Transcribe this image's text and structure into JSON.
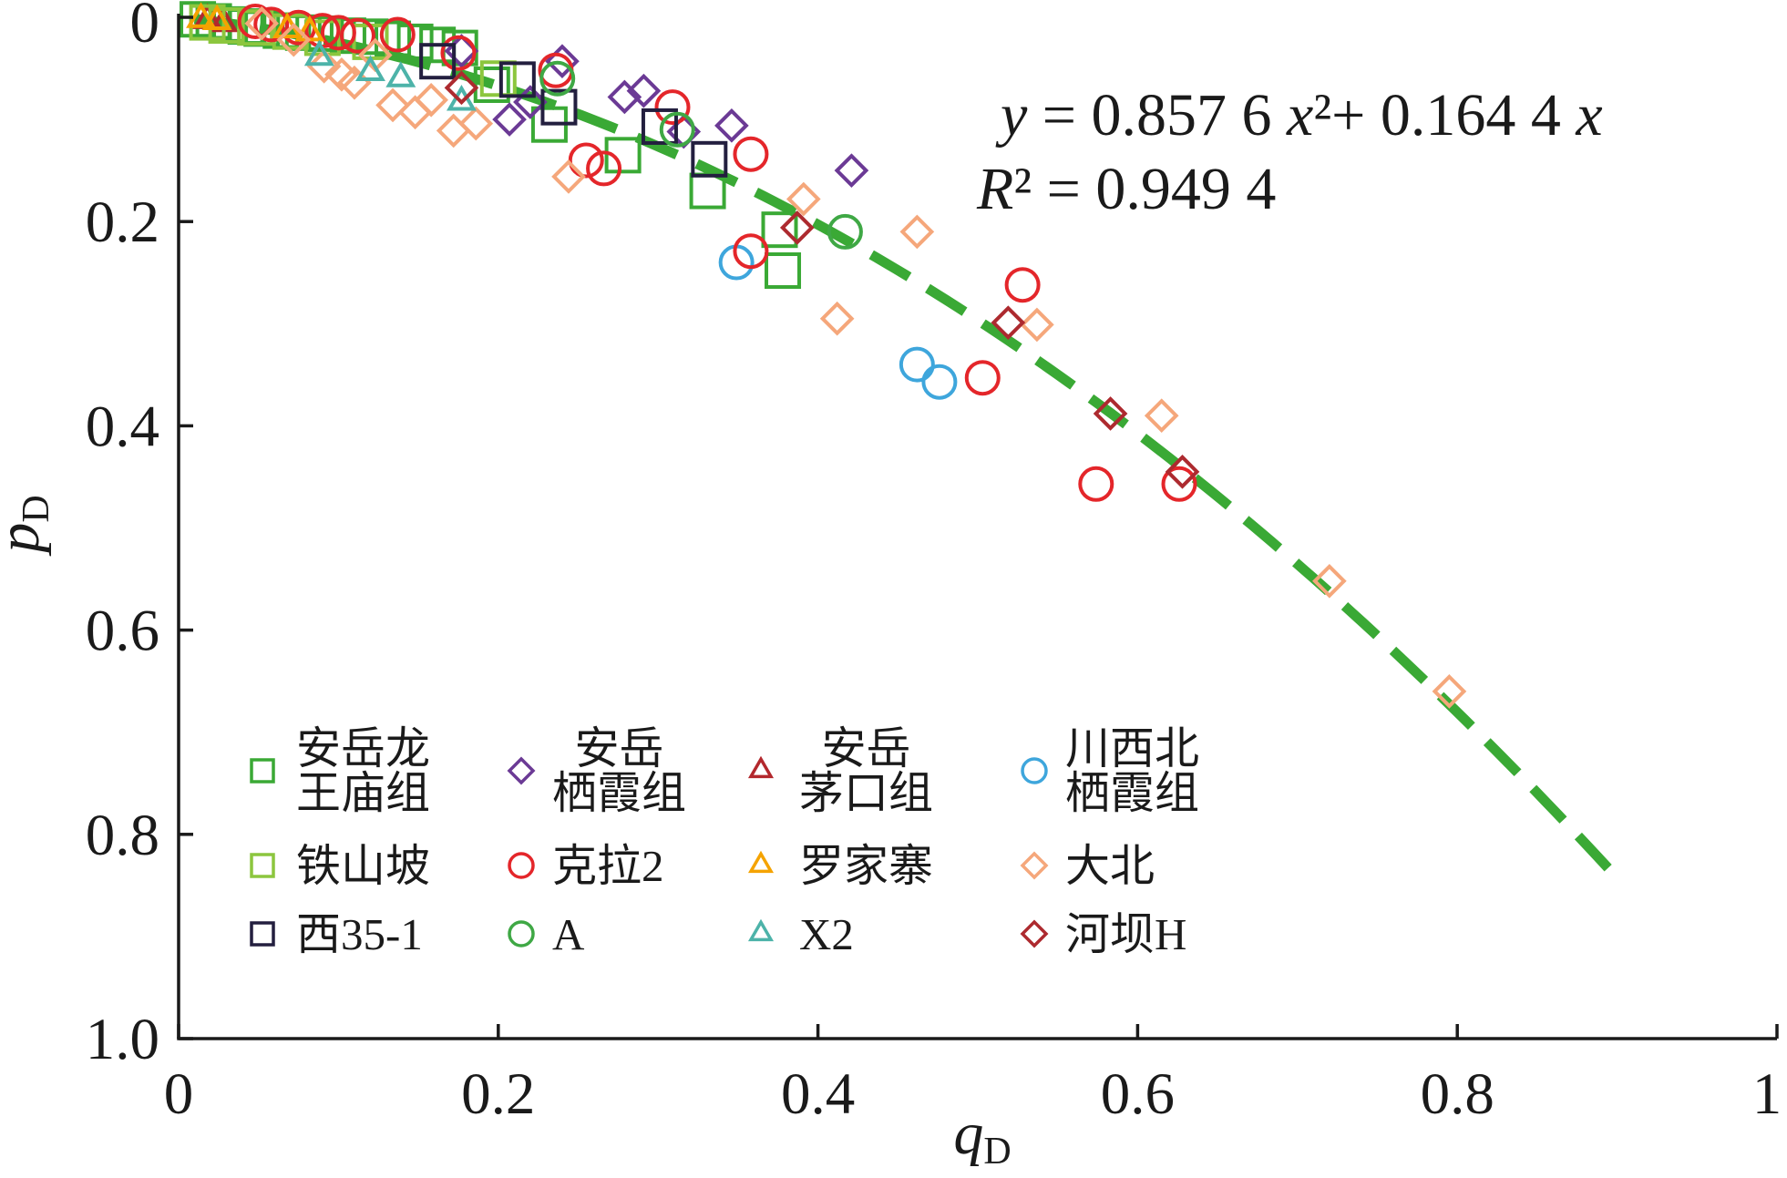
{
  "chart_data": {
    "type": "scatter",
    "xlabel": "q",
    "xlabel_sub": "D",
    "ylabel": "p",
    "ylabel_sub": "D",
    "xlim": [
      0,
      1
    ],
    "ylim": [
      0,
      1
    ],
    "y_inverted": true,
    "grid": false,
    "x_ticks": [
      {
        "value": 0,
        "label": "0"
      },
      {
        "value": 0.2,
        "label": "0.2"
      },
      {
        "value": 0.4,
        "label": "0.4"
      },
      {
        "value": 0.6,
        "label": "0.6"
      },
      {
        "value": 0.8,
        "label": "0.8"
      },
      {
        "value": 1,
        "label": "1"
      }
    ],
    "y_ticks": [
      {
        "value": 0,
        "label": "0"
      },
      {
        "value": 0.2,
        "label": "0.2"
      },
      {
        "value": 0.4,
        "label": "0.4"
      },
      {
        "value": 0.6,
        "label": "0.6"
      },
      {
        "value": 0.8,
        "label": "0.8"
      },
      {
        "value": 1,
        "label": "1.0"
      }
    ],
    "legend": {
      "placement": "bottom-left"
    },
    "fit": {
      "type": "quadratic",
      "a": 0.8576,
      "b": 0.1644,
      "x_range": [
        0.01,
        0.9
      ],
      "color": "#3aa935"
    },
    "annotations": {
      "equation": "y = 0.857 6 x²+ 0.164 4 x",
      "r_squared": "R² = 0.949 4"
    },
    "series": [
      {
        "name": "安岳龙\n王庙组",
        "marker": "square",
        "color": "#3aa935",
        "points": [
          [
            0.012,
            0.002
          ],
          [
            0.022,
            0.004
          ],
          [
            0.032,
            0.007
          ],
          [
            0.042,
            0.009
          ],
          [
            0.052,
            0.011
          ],
          [
            0.064,
            0.013
          ],
          [
            0.078,
            0.015
          ],
          [
            0.092,
            0.016
          ],
          [
            0.106,
            0.018
          ],
          [
            0.12,
            0.019
          ],
          [
            0.134,
            0.021
          ],
          [
            0.148,
            0.024
          ],
          [
            0.162,
            0.027
          ],
          [
            0.176,
            0.03
          ],
          [
            0.196,
            0.066
          ],
          [
            0.232,
            0.105
          ],
          [
            0.278,
            0.135
          ],
          [
            0.331,
            0.17
          ],
          [
            0.376,
            0.208
          ],
          [
            0.378,
            0.248
          ]
        ]
      },
      {
        "name": "安岳\n栖霞组",
        "marker": "diamond",
        "color": "#6b3a95",
        "points": [
          [
            0.177,
            0.033
          ],
          [
            0.207,
            0.1
          ],
          [
            0.22,
            0.083
          ],
          [
            0.24,
            0.043
          ],
          [
            0.279,
            0.078
          ],
          [
            0.291,
            0.072
          ],
          [
            0.316,
            0.112
          ],
          [
            0.346,
            0.106
          ],
          [
            0.421,
            0.15
          ]
        ]
      },
      {
        "name": "安岳\n茅口组",
        "marker": "triangle",
        "color": "#b3282d",
        "points": [
          [
            0.018,
            0.003
          ],
          [
            0.028,
            0.006
          ]
        ]
      },
      {
        "name": "川西北\n栖霞组",
        "marker": "circle",
        "color": "#3ea6dc",
        "points": [
          [
            0.349,
            0.24
          ],
          [
            0.462,
            0.34
          ],
          [
            0.476,
            0.357
          ]
        ]
      },
      {
        "name": "铁山坡",
        "marker": "square",
        "color": "#8cc63e",
        "points": [
          [
            0.018,
            0.005
          ],
          [
            0.03,
            0.008
          ],
          [
            0.048,
            0.01
          ],
          [
            0.07,
            0.014
          ],
          [
            0.09,
            0.02
          ],
          [
            0.12,
            0.024
          ],
          [
            0.2,
            0.06
          ]
        ]
      },
      {
        "name": "克拉2",
        "marker": "circle",
        "color": "#e4262a",
        "points": [
          [
            0.048,
            0.004
          ],
          [
            0.058,
            0.007
          ],
          [
            0.075,
            0.01
          ],
          [
            0.09,
            0.013
          ],
          [
            0.1,
            0.015
          ],
          [
            0.112,
            0.018
          ],
          [
            0.137,
            0.017
          ],
          [
            0.175,
            0.035
          ],
          [
            0.236,
            0.052
          ],
          [
            0.255,
            0.14
          ],
          [
            0.266,
            0.148
          ],
          [
            0.309,
            0.088
          ],
          [
            0.358,
            0.134
          ],
          [
            0.358,
            0.229
          ],
          [
            0.503,
            0.353
          ],
          [
            0.528,
            0.262
          ],
          [
            0.574,
            0.457
          ],
          [
            0.626,
            0.457
          ]
        ]
      },
      {
        "name": "罗家寨",
        "marker": "triangle",
        "color": "#f5a300",
        "points": [
          [
            0.014,
            0.002
          ],
          [
            0.024,
            0.004
          ],
          [
            0.068,
            0.012
          ],
          [
            0.082,
            0.015
          ]
        ]
      },
      {
        "name": "大北",
        "marker": "diamond",
        "color": "#f5a77b",
        "points": [
          [
            0.052,
            0.006
          ],
          [
            0.072,
            0.022
          ],
          [
            0.091,
            0.048
          ],
          [
            0.102,
            0.056
          ],
          [
            0.11,
            0.064
          ],
          [
            0.123,
            0.037
          ],
          [
            0.134,
            0.086
          ],
          [
            0.148,
            0.093
          ],
          [
            0.158,
            0.081
          ],
          [
            0.172,
            0.111
          ],
          [
            0.186,
            0.104
          ],
          [
            0.244,
            0.156
          ],
          [
            0.391,
            0.178
          ],
          [
            0.412,
            0.295
          ],
          [
            0.462,
            0.21
          ],
          [
            0.537,
            0.301
          ],
          [
            0.615,
            0.39
          ],
          [
            0.72,
            0.552
          ],
          [
            0.795,
            0.66
          ]
        ]
      },
      {
        "name": "西35-1",
        "marker": "square",
        "color": "#231f3f",
        "points": [
          [
            0.162,
            0.043
          ],
          [
            0.212,
            0.061
          ],
          [
            0.238,
            0.088
          ],
          [
            0.301,
            0.107
          ],
          [
            0.332,
            0.139
          ]
        ]
      },
      {
        "name": "A",
        "marker": "circle",
        "color": "#3fa845",
        "points": [
          [
            0.237,
            0.06
          ],
          [
            0.312,
            0.11
          ],
          [
            0.417,
            0.21
          ]
        ]
      },
      {
        "name": "X2",
        "marker": "triangle",
        "color": "#4db3a9",
        "points": [
          [
            0.088,
            0.039
          ],
          [
            0.12,
            0.054
          ],
          [
            0.139,
            0.06
          ],
          [
            0.177,
            0.083
          ]
        ]
      },
      {
        "name": "河坝H",
        "marker": "diamond",
        "color": "#ad2a2f",
        "points": [
          [
            0.177,
            0.069
          ],
          [
            0.387,
            0.206
          ],
          [
            0.519,
            0.299
          ],
          [
            0.583,
            0.388
          ],
          [
            0.628,
            0.445
          ]
        ]
      }
    ]
  }
}
